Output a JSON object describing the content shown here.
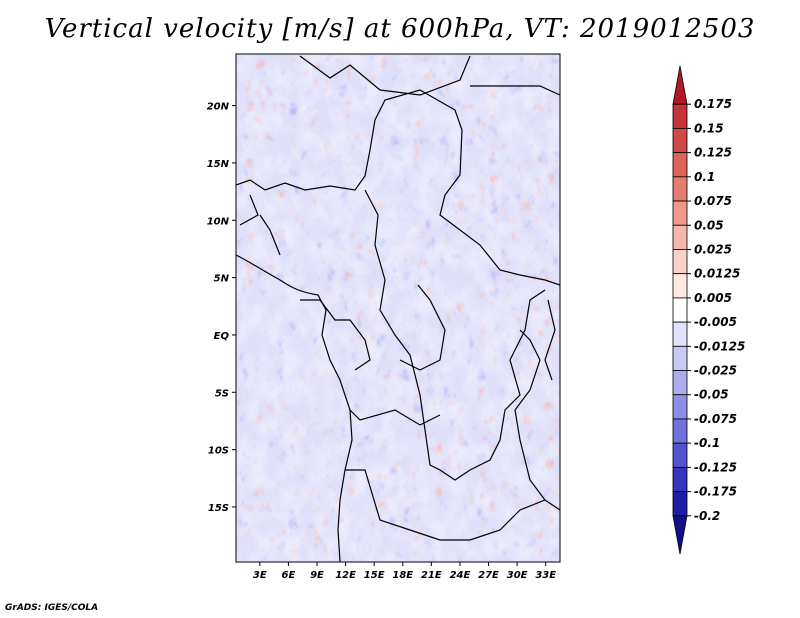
{
  "title": "Vertical velocity [m/s] at 600hPa, VT: 2019012503",
  "credit": "GrADS: IGES/COLA",
  "map": {
    "variable": "Vertical velocity",
    "units": "m/s",
    "level": "600hPa",
    "valid_time": "2019012503",
    "lon_ticks": [
      "3E",
      "6E",
      "9E",
      "12E",
      "15E",
      "18E",
      "21E",
      "24E",
      "27E",
      "30E",
      "33E"
    ],
    "lon_values": [
      3,
      6,
      9,
      12,
      15,
      18,
      21,
      24,
      27,
      30,
      33
    ],
    "lat_ticks": [
      "20N",
      "15N",
      "10N",
      "5N",
      "EQ",
      "5S",
      "10S",
      "15S"
    ],
    "lat_values": [
      20,
      15,
      10,
      5,
      0,
      -5,
      -10,
      -15
    ],
    "lon_range": [
      0.5,
      34.5
    ],
    "lat_range": [
      -19.8,
      24.5
    ]
  },
  "colorbar": {
    "labels": [
      "0.175",
      "0.15",
      "0.125",
      "0.1",
      "0.075",
      "0.05",
      "0.025",
      "0.0125",
      "0.005",
      "-0.005",
      "-0.0125",
      "-0.025",
      "-0.05",
      "-0.075",
      "-0.1",
      "-0.125",
      "-0.175",
      "-0.2"
    ],
    "colors": [
      "#b2182b",
      "#c4343a",
      "#d24a48",
      "#dd6257",
      "#e57d70",
      "#ee9b8c",
      "#f5b8ab",
      "#fad1c7",
      "#fde8e2",
      "#ffffff",
      "#e2e2fb",
      "#c9c9f5",
      "#adadee",
      "#8f8fe6",
      "#7272dd",
      "#5353cf",
      "#3535bd",
      "#1f1fa6",
      "#120f8c"
    ]
  }
}
